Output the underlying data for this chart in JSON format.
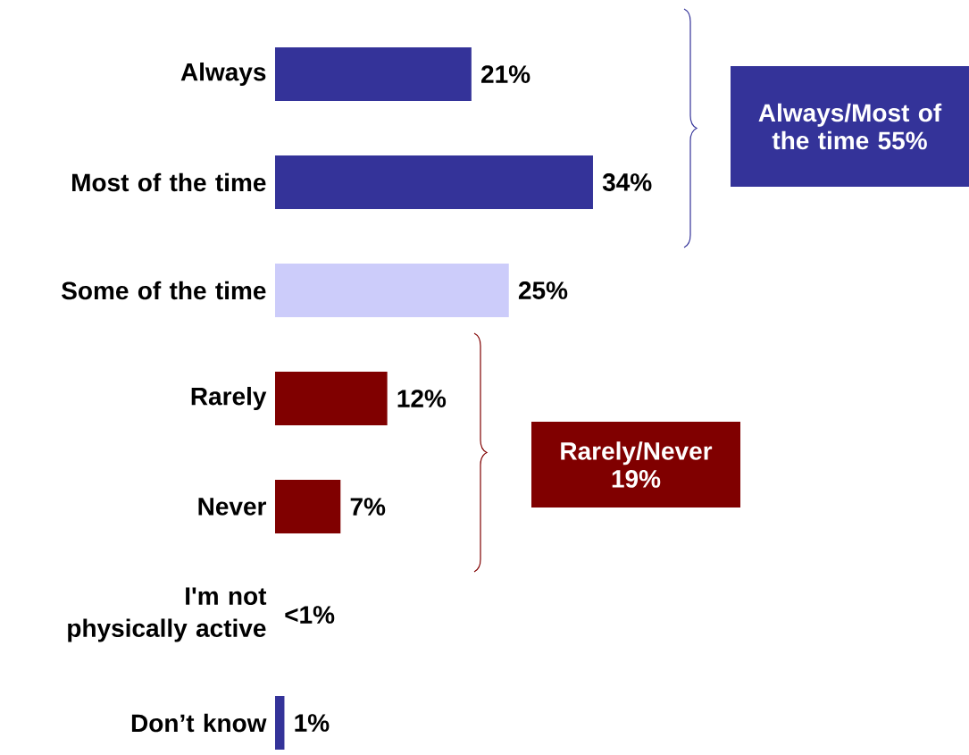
{
  "chart_data": {
    "type": "bar",
    "orientation": "horizontal",
    "categories": [
      "Always",
      "Most of the time",
      "Some of the time",
      "Rarely",
      "Never",
      "I'm not physically active",
      "Don’t know"
    ],
    "values": [
      21,
      34,
      25,
      12,
      7,
      0,
      1
    ],
    "colors": [
      "#343399",
      "#343399",
      "#ccccfa",
      "#800000",
      "#800000",
      "#343399",
      "#343399"
    ],
    "value_labels": [
      "21%",
      "34%",
      "25%",
      "12%",
      "7%",
      "<1%",
      "1%"
    ],
    "annotations": [
      "Always/Most of the time 55%",
      "Rarely/Never 19%"
    ]
  }
}
